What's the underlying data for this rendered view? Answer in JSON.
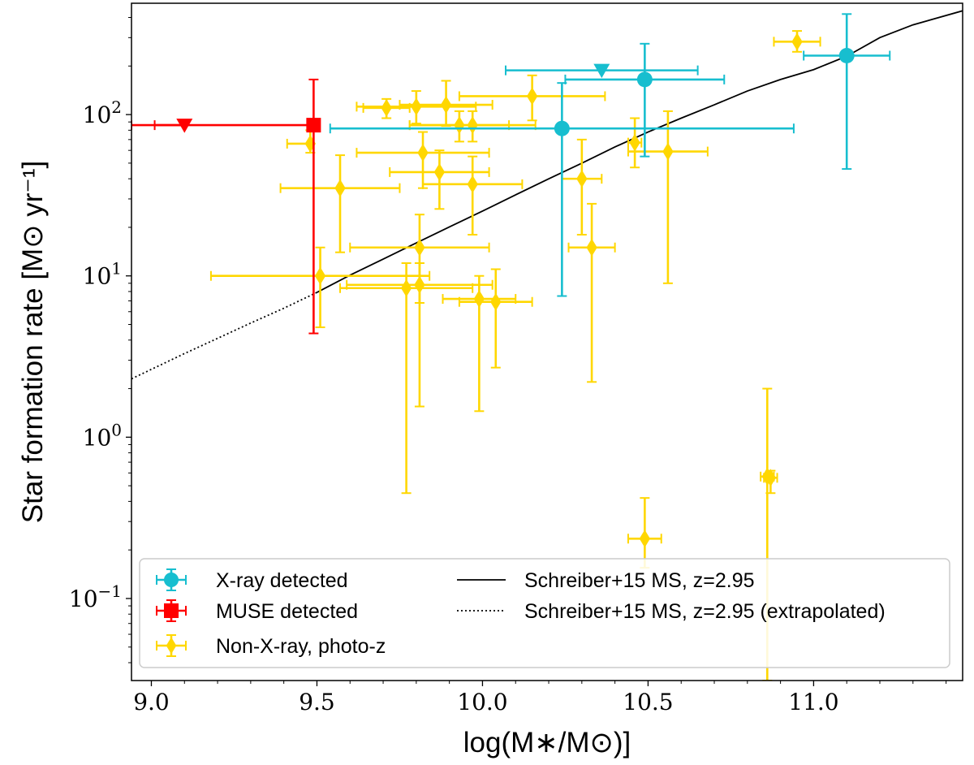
{
  "chart_data": {
    "type": "scatter",
    "title": "",
    "xlabel": "log(M∗/M⊙)]",
    "ylabel": "Star formation rate [M⊙ yr⁻¹]",
    "xscale": "linear",
    "yscale": "log",
    "xlim": [
      8.94,
      11.45
    ],
    "ylim": [
      0.031,
      490
    ],
    "x_ticks": [
      {
        "value": 9.0,
        "label": "9.0"
      },
      {
        "value": 9.5,
        "label": "9.5"
      },
      {
        "value": 10.0,
        "label": "10.0"
      },
      {
        "value": 10.5,
        "label": "10.5"
      },
      {
        "value": 11.0,
        "label": "11.0"
      }
    ],
    "y_ticks": [
      {
        "value": 0.1,
        "base": "10",
        "exp": "−1"
      },
      {
        "value": 1,
        "base": "10",
        "exp": "0"
      },
      {
        "value": 10,
        "base": "10",
        "exp": "1"
      },
      {
        "value": 100,
        "base": "10",
        "exp": "2"
      }
    ],
    "series": [
      {
        "name": "X-ray detected",
        "color": "#17BECF",
        "marker": "circle",
        "points": [
          {
            "x": 10.24,
            "y": 82,
            "xerr": [
              0.0,
              0.0
            ],
            "yerr": [
              7.5,
              157
            ]
          },
          {
            "x": 10.49,
            "y": 165,
            "xerr": [
              0.24,
              0.24
            ],
            "yerr": [
              55,
              275
            ]
          },
          {
            "x": 11.1,
            "y": 232,
            "xerr": [
              0.13,
              0.13
            ],
            "yerr": [
              46,
              420
            ]
          }
        ],
        "extra_errorbars": [
          {
            "x": 10.24,
            "y": 82,
            "xerr": [
              0.7,
              0.7
            ]
          }
        ],
        "upper_limits": [
          {
            "x": 10.36,
            "y": 188,
            "xerr": [
              0.29,
              0.29
            ]
          }
        ]
      },
      {
        "name": "MUSE detected",
        "color": "#FF0000",
        "marker": "square",
        "points": [
          {
            "x": 9.49,
            "y": 86,
            "xerr": [
              0.55,
              0.0
            ],
            "yerr": [
              4.4,
              165
            ]
          }
        ],
        "upper_limits": [
          {
            "x": 9.1,
            "y": 86,
            "xerr": [
              0.09,
              0.0
            ]
          }
        ]
      },
      {
        "name": "Non-X-ray, photo-z",
        "color": "#FFD700",
        "marker": "diamond",
        "points": [
          {
            "x": 9.48,
            "y": 66,
            "xerr": [
              0.07,
              0.0
            ],
            "yerr": [
              58,
              80
            ]
          },
          {
            "x": 9.57,
            "y": 35,
            "xerr": [
              0.18,
              0.18
            ],
            "yerr": [
              14,
              56
            ]
          },
          {
            "x": 9.51,
            "y": 10,
            "xerr": [
              0.33,
              0.33
            ],
            "yerr": [
              4.8,
              15
            ]
          },
          {
            "x": 9.71,
            "y": 110,
            "xerr": [
              0.07,
              0.07
            ],
            "yerr": [
              95,
              125
            ]
          },
          {
            "x": 9.8,
            "y": 112,
            "xerr": [
              0.18,
              0.18
            ],
            "yerr": [
              88,
              140
            ]
          },
          {
            "x": 9.89,
            "y": 115,
            "xerr": [
              0.14,
              0.14
            ],
            "yerr": [
              85,
              162
            ]
          },
          {
            "x": 9.93,
            "y": 86,
            "xerr": [
              0.15,
              0.15
            ],
            "yerr": [
              68,
              105
            ]
          },
          {
            "x": 9.97,
            "y": 86,
            "xerr": [
              0.19,
              0.19
            ],
            "yerr": [
              68,
              105
            ]
          },
          {
            "x": 10.15,
            "y": 130,
            "xerr": [
              0.22,
              0.22
            ],
            "yerr": [
              92,
              175
            ]
          },
          {
            "x": 9.82,
            "y": 58,
            "xerr": [
              0.2,
              0.2
            ],
            "yerr": [
              35,
              78
            ]
          },
          {
            "x": 9.87,
            "y": 44,
            "xerr": [
              0.15,
              0.15
            ],
            "yerr": [
              26,
              60
            ]
          },
          {
            "x": 9.97,
            "y": 37,
            "xerr": [
              0.15,
              0.15
            ],
            "yerr": [
              18,
              55
            ]
          },
          {
            "x": 10.3,
            "y": 40,
            "xerr": [
              0.06,
              0.06
            ],
            "yerr": [
              18,
              70
            ]
          },
          {
            "x": 9.81,
            "y": 15,
            "xerr": [
              0.21,
              0.21
            ],
            "yerr": [
              6.8,
              24
            ]
          },
          {
            "x": 9.81,
            "y": 8.8,
            "xerr": [
              0.22,
              0.22
            ],
            "yerr": [
              1.55,
              12
            ]
          },
          {
            "x": 9.77,
            "y": 8.4,
            "xerr": [
              0.2,
              0.2
            ],
            "yerr": [
              0.45,
              12
            ]
          },
          {
            "x": 9.99,
            "y": 7.2,
            "xerr": [
              0.11,
              0.11
            ],
            "yerr": [
              1.45,
              10
            ]
          },
          {
            "x": 10.04,
            "y": 6.9,
            "xerr": [
              0.11,
              0.11
            ],
            "yerr": [
              2.7,
              11
            ]
          },
          {
            "x": 10.33,
            "y": 15,
            "xerr": [
              0.07,
              0.07
            ],
            "yerr": [
              2.2,
              28
            ]
          },
          {
            "x": 10.46,
            "y": 67,
            "xerr": [
              0.02,
              0.02
            ],
            "yerr": [
              47,
              95
            ]
          },
          {
            "x": 10.56,
            "y": 59,
            "xerr": [
              0.12,
              0.12
            ],
            "yerr": [
              9,
              105
            ]
          },
          {
            "x": 10.95,
            "y": 283,
            "xerr": [
              0.07,
              0.07
            ],
            "yerr": [
              245,
              330
            ]
          },
          {
            "x": 10.86,
            "y": 0.57,
            "xerr": [
              0.02,
              0.02
            ],
            "yerr": [
              0.031,
              2.0
            ]
          },
          {
            "x": 10.87,
            "y": 0.56,
            "xerr": [
              0.02,
              0.02
            ],
            "yerr": [
              0.45,
              0.62
            ]
          },
          {
            "x": 10.49,
            "y": 0.235,
            "xerr": [
              0.05,
              0.05
            ],
            "yerr": [
              0.155,
              0.42
            ]
          }
        ]
      },
      {
        "name": "Schreiber+15 MS, z=2.95",
        "color": "#000000",
        "line_style": "solid",
        "x": [
          9.5,
          9.6,
          9.7,
          9.8,
          9.9,
          10.0,
          10.1,
          10.2,
          10.3,
          10.4,
          10.5,
          10.6,
          10.7,
          10.8,
          10.9,
          11.0,
          11.1,
          11.2,
          11.3,
          11.45
        ],
        "y": [
          7.9,
          10.1,
          12.7,
          16.0,
          20.1,
          25.2,
          31.8,
          40,
          50,
          63,
          78,
          95,
          115,
          140,
          165,
          190,
          230,
          300,
          360,
          440
        ]
      },
      {
        "name": "Schreiber+15 MS, z=2.95 (extrapolated)",
        "color": "#000000",
        "line_style": "dotted",
        "x": [
          8.94,
          9.1,
          9.2,
          9.3,
          9.4,
          9.5
        ],
        "y": [
          2.3,
          3.3,
          4.1,
          5.1,
          6.3,
          7.9
        ]
      }
    ],
    "legend": {
      "placement": "lower-left",
      "entries": [
        {
          "label": "X-ray detected",
          "series": 0
        },
        {
          "label": "MUSE detected",
          "series": 1
        },
        {
          "label": "Non-X-ray, photo-z",
          "series": 2
        },
        {
          "label": "Schreiber+15 MS, z=2.95",
          "series": 3
        },
        {
          "label": "Schreiber+15 MS, z=2.95 (extrapolated)",
          "series": 4
        }
      ]
    }
  }
}
